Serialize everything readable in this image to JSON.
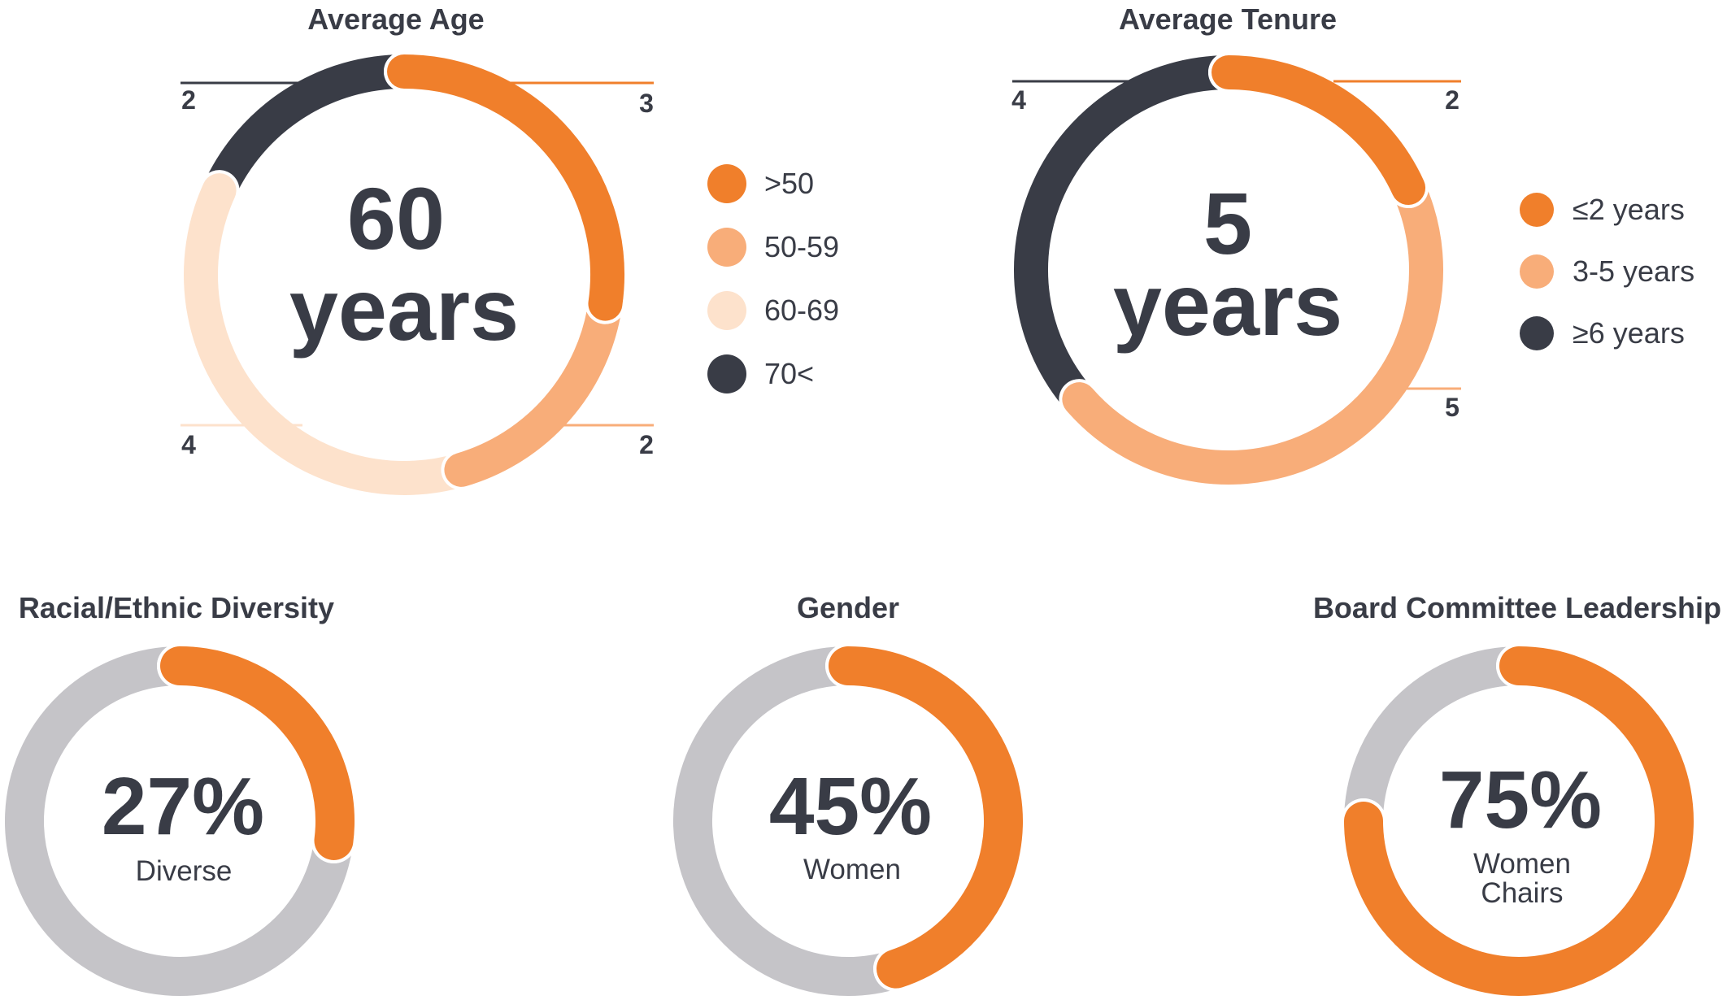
{
  "colors": {
    "orange": "#f07f2b",
    "light_orange": "#f8ad79",
    "pale_orange": "#fde2cc",
    "dark": "#393c46",
    "gray": "#c5c4c8"
  },
  "chart_data": [
    {
      "type": "pie",
      "variant": "donut",
      "title": "Average Age",
      "center_value": "60",
      "center_unit": "years",
      "slices": [
        {
          "label": ">50",
          "value": 3,
          "color": "#f07f2b"
        },
        {
          "label": "50-59",
          "value": 2,
          "color": "#f8ad79"
        },
        {
          "label": "60-69",
          "value": 4,
          "color": "#fde2cc"
        },
        {
          "label": "70<",
          "value": 2,
          "color": "#393c46"
        }
      ],
      "legend": [
        ">50",
        "50-59",
        "60-69",
        "70<"
      ],
      "legend_position": "right"
    },
    {
      "type": "pie",
      "variant": "donut",
      "title": "Average Tenure",
      "center_value": "5",
      "center_unit": "years",
      "slices": [
        {
          "label": "≤2 years",
          "value": 2,
          "color": "#f07f2b"
        },
        {
          "label": "3-5 years",
          "value": 5,
          "color": "#f8ad79"
        },
        {
          "label": "≥6 years",
          "value": 4,
          "color": "#393c46"
        }
      ],
      "legend": [
        "≤2 years",
        "3-5 years",
        "≥6 years"
      ],
      "legend_position": "right"
    },
    {
      "type": "pie",
      "variant": "donut",
      "title": "Racial/Ethnic Diversity",
      "center_value": "27%",
      "center_label": [
        "Diverse"
      ],
      "percent": 27
    },
    {
      "type": "pie",
      "variant": "donut",
      "title": "Gender",
      "center_value": "45%",
      "center_label": [
        "Women"
      ],
      "percent": 45
    },
    {
      "type": "pie",
      "variant": "donut",
      "title": "Board Committee Leadership",
      "center_value": "75%",
      "center_label": [
        "Women",
        "Chairs"
      ],
      "percent": 75
    }
  ]
}
